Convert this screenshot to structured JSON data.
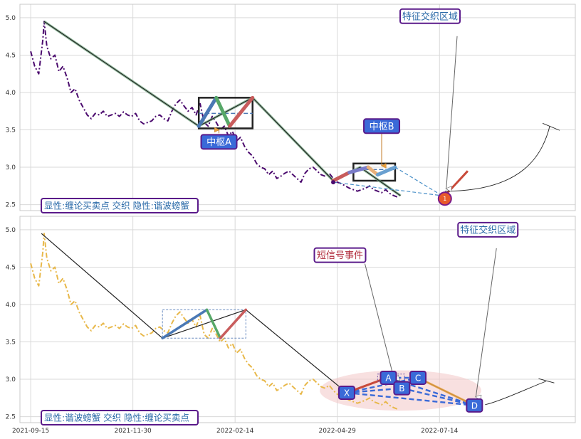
{
  "chart_data": [
    {
      "type": "line",
      "panel": "top",
      "ylim": [
        2.42,
        5.18
      ],
      "yticks": [
        "2.5",
        "3.0",
        "3.5",
        "4.0",
        "4.5",
        "5.0"
      ],
      "grid": true,
      "series": [
        {
          "color": "#4b0a6e",
          "style": "dash-dot",
          "x": [
            0,
            3,
            6,
            9,
            10,
            12,
            15,
            18,
            21,
            24,
            27,
            30,
            33,
            36,
            39,
            42,
            45,
            48,
            51,
            54,
            57,
            60,
            63,
            66,
            69,
            72,
            75,
            78,
            81,
            84,
            87,
            90,
            93,
            96,
            99,
            102,
            105,
            108,
            111,
            114,
            117,
            120,
            123,
            126,
            129,
            132,
            135,
            138,
            141,
            144,
            147,
            150,
            153,
            156,
            159,
            162,
            165,
            168,
            171,
            174,
            177,
            180,
            183,
            186,
            189,
            192,
            195,
            198,
            201,
            204,
            207,
            210,
            213,
            216,
            219,
            222,
            225,
            228,
            231,
            234,
            237,
            240,
            243,
            246,
            249,
            252,
            255,
            258,
            261,
            264,
            267,
            270,
            273
          ],
          "values": [
            4.55,
            4.35,
            4.25,
            4.7,
            4.95,
            4.62,
            4.45,
            4.5,
            4.28,
            4.35,
            4.2,
            4.0,
            4.05,
            3.9,
            3.8,
            3.7,
            3.65,
            3.72,
            3.7,
            3.75,
            3.68,
            3.7,
            3.72,
            3.68,
            3.74,
            3.7,
            3.68,
            3.72,
            3.62,
            3.58,
            3.6,
            3.62,
            3.68,
            3.7,
            3.65,
            3.62,
            3.75,
            3.85,
            3.9,
            3.82,
            3.75,
            3.8,
            3.7,
            3.85,
            3.6,
            3.55,
            3.68,
            3.6,
            3.5,
            3.55,
            3.42,
            3.48,
            3.35,
            3.4,
            3.28,
            3.2,
            3.15,
            3.05,
            3.0,
            2.98,
            2.9,
            2.95,
            2.85,
            2.88,
            2.92,
            2.95,
            2.9,
            2.85,
            2.8,
            2.92,
            2.98,
            3.0,
            2.95,
            2.9,
            2.88,
            2.92,
            2.85,
            2.8,
            2.78,
            2.75,
            2.72,
            2.7,
            2.68,
            2.7,
            2.72,
            2.75,
            2.7,
            2.68,
            2.66,
            2.7,
            2.65,
            2.62,
            2.6
          ]
        }
      ],
      "trend": [
        [
          10,
          4.95
        ],
        [
          125,
          3.55
        ],
        [
          165,
          3.93
        ],
        [
          225,
          2.82
        ],
        [
          245,
          3.0
        ],
        [
          275,
          2.62
        ]
      ],
      "center_box": {
        "x0": 125,
        "x1": 165,
        "y0": 3.52,
        "y1": 3.93,
        "mid": 3.72
      },
      "center_box_b": {
        "x0": 240,
        "x1": 271,
        "y0": 2.82,
        "y1": 3.05,
        "mid": 2.97
      },
      "legs": [
        {
          "from": [
            125,
            3.55
          ],
          "to": [
            138,
            3.93
          ],
          "color": "#4a78b4"
        },
        {
          "from": [
            138,
            3.93
          ],
          "to": [
            148,
            3.55
          ],
          "color": "#57a868"
        },
        {
          "from": [
            148,
            3.55
          ],
          "to": [
            165,
            3.93
          ],
          "color": "#c85c5c"
        }
      ],
      "legs_b": [
        {
          "from": [
            225,
            2.82
          ],
          "to": [
            237,
            2.93
          ],
          "color": "#c85c5c"
        },
        {
          "from": [
            237,
            2.93
          ],
          "to": [
            251,
            3.0
          ],
          "color": "#7a7cc8"
        },
        {
          "from": [
            251,
            3.0
          ],
          "to": [
            258,
            2.9
          ],
          "color": "#e8b07a"
        },
        {
          "from": [
            258,
            2.9
          ],
          "to": [
            271,
            3.0
          ],
          "color": "#6aa0d0"
        }
      ],
      "orange_segment": {
        "from": [
          308,
          2.62
        ],
        "to": [
          325,
          2.95
        ]
      },
      "end_marker": {
        "x": 308,
        "y": 2.58,
        "text": "1"
      },
      "arc": {
        "from": [
          308,
          2.68
        ],
        "to": [
          386,
          3.55
        ]
      },
      "annotations": [
        {
          "id": "center_a",
          "text": "中枢A",
          "x": 140,
          "y": 3.34
        },
        {
          "id": "center_b",
          "text": "中枢B",
          "x": 261,
          "y": 3.55
        },
        {
          "id": "feature_zone",
          "text": "特征交织区域",
          "x": 297,
          "y": 5.02
        }
      ],
      "legend_text": "显性:缠论买卖点 交织 隐性:谐波螃蟹"
    },
    {
      "type": "line",
      "panel": "bottom",
      "ylim": [
        2.42,
        5.18
      ],
      "yticks": [
        "2.5",
        "3.0",
        "3.5",
        "4.0",
        "4.5",
        "5.0"
      ],
      "xticks": [
        "2021-09-15",
        "2021-11-30",
        "2022-02-14",
        "2022-04-29",
        "2022-07-14"
      ],
      "x_tick_positions": [
        0,
        76,
        152,
        228,
        304
      ],
      "grid": true,
      "series": [
        {
          "color": "#e8b84a",
          "style": "dash-dot",
          "x": [
            0,
            3,
            6,
            9,
            10,
            12,
            15,
            18,
            21,
            24,
            27,
            30,
            33,
            36,
            39,
            42,
            45,
            48,
            51,
            54,
            57,
            60,
            63,
            66,
            69,
            72,
            75,
            78,
            81,
            84,
            87,
            90,
            93,
            96,
            99,
            102,
            105,
            108,
            111,
            114,
            117,
            120,
            123,
            126,
            129,
            132,
            135,
            138,
            141,
            144,
            147,
            150,
            153,
            156,
            159,
            162,
            165,
            168,
            171,
            174,
            177,
            180,
            183,
            186,
            189,
            192,
            195,
            198,
            201,
            204,
            207,
            210,
            213,
            216,
            219,
            222,
            225,
            228,
            231,
            234,
            237,
            240,
            243,
            246,
            249,
            252,
            255,
            258,
            261,
            264,
            267,
            270,
            273
          ],
          "values": [
            4.55,
            4.35,
            4.25,
            4.7,
            4.95,
            4.62,
            4.45,
            4.5,
            4.28,
            4.35,
            4.2,
            4.0,
            4.05,
            3.9,
            3.8,
            3.7,
            3.65,
            3.72,
            3.7,
            3.75,
            3.68,
            3.7,
            3.72,
            3.68,
            3.74,
            3.7,
            3.68,
            3.72,
            3.62,
            3.58,
            3.6,
            3.62,
            3.68,
            3.7,
            3.65,
            3.62,
            3.75,
            3.85,
            3.9,
            3.82,
            3.75,
            3.8,
            3.7,
            3.85,
            3.6,
            3.55,
            3.68,
            3.6,
            3.5,
            3.55,
            3.42,
            3.48,
            3.35,
            3.4,
            3.28,
            3.2,
            3.15,
            3.05,
            3.0,
            2.98,
            2.9,
            2.95,
            2.85,
            2.88,
            2.92,
            2.95,
            2.9,
            2.85,
            2.8,
            2.92,
            2.98,
            3.0,
            2.95,
            2.9,
            2.88,
            2.92,
            2.85,
            2.8,
            2.78,
            2.75,
            2.72,
            2.7,
            2.68,
            2.7,
            2.72,
            2.75,
            2.7,
            2.68,
            2.66,
            2.7,
            2.65,
            2.62,
            2.6
          ]
        }
      ],
      "trend": [
        [
          8,
          4.95
        ],
        [
          98,
          3.55
        ],
        [
          160,
          3.93
        ],
        [
          235,
          2.82
        ],
        [
          266,
          3.02
        ],
        [
          276,
          2.88
        ],
        [
          288,
          3.02
        ],
        [
          330,
          2.65
        ]
      ],
      "center_box": {
        "x0": 98,
        "x1": 160,
        "y0": 3.55,
        "y1": 3.93
      },
      "legs": [
        {
          "from": [
            98,
            3.55
          ],
          "to": [
            131,
            3.93
          ],
          "color": "#4a78b4"
        },
        {
          "from": [
            131,
            3.93
          ],
          "to": [
            141,
            3.55
          ],
          "color": "#57a868"
        },
        {
          "from": [
            141,
            3.55
          ],
          "to": [
            160,
            3.93
          ],
          "color": "#c85c5c"
        }
      ],
      "pattern_points": [
        {
          "text": "X",
          "x": 235,
          "y": 2.82
        },
        {
          "text": "A",
          "x": 266,
          "y": 3.02
        },
        {
          "text": "B",
          "x": 276,
          "y": 2.88
        },
        {
          "text": "C",
          "x": 288,
          "y": 3.02
        },
        {
          "text": "D",
          "x": 330,
          "y": 2.65
        }
      ],
      "ellipse": {
        "cx": 275,
        "cy": 2.85,
        "rx": 60,
        "ry": 0.27
      },
      "annotations": [
        {
          "id": "short_signal",
          "text": "短信号事件",
          "x": 230,
          "y": 4.66
        },
        {
          "id": "feature_zone",
          "text": "特征交织区域",
          "x": 340,
          "y": 5.0
        }
      ],
      "legend_text": "显性:谐波螃蟹 交织 隐性:缠论买卖点"
    }
  ]
}
